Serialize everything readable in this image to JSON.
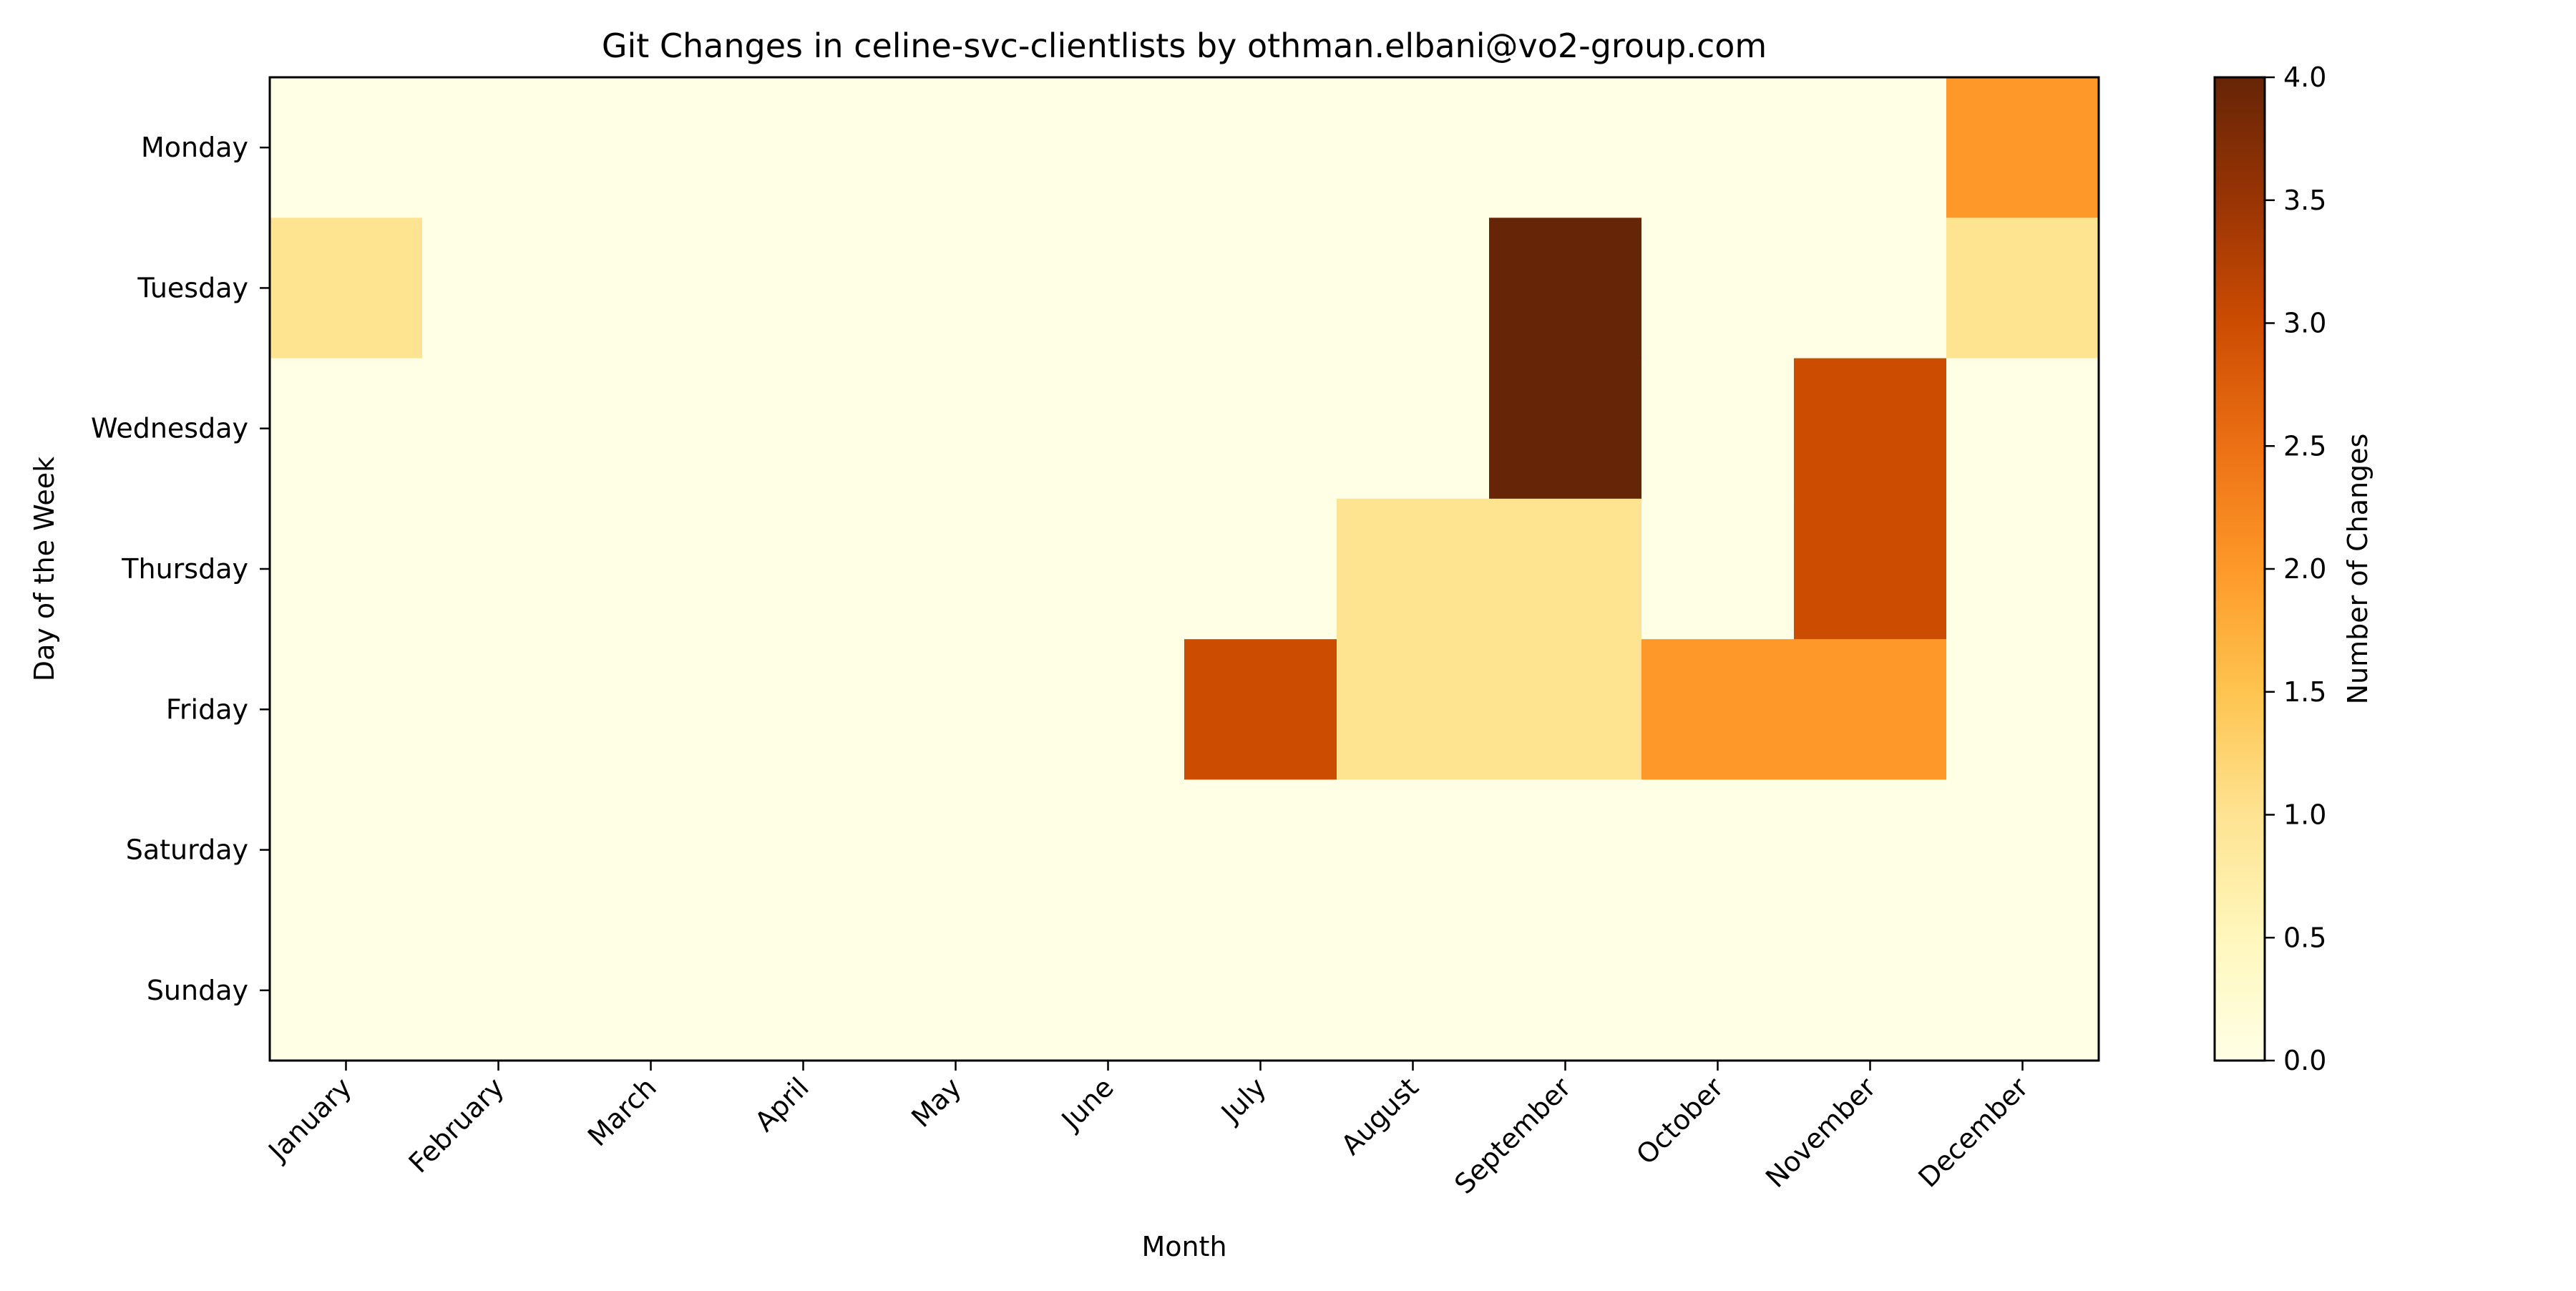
{
  "chart_data": {
    "type": "heatmap",
    "title": "Git Changes in celine-svc-clientlists by othman.elbani@vo2-group.com",
    "xlabel": "Month",
    "ylabel": "Day of the Week",
    "x_categories": [
      "January",
      "February",
      "March",
      "April",
      "May",
      "June",
      "July",
      "August",
      "September",
      "October",
      "November",
      "December"
    ],
    "y_categories": [
      "Monday",
      "Tuesday",
      "Wednesday",
      "Thursday",
      "Friday",
      "Saturday",
      "Sunday"
    ],
    "values": [
      [
        0,
        0,
        0,
        0,
        0,
        0,
        0,
        0,
        0,
        0,
        0,
        2
      ],
      [
        1,
        0,
        0,
        0,
        0,
        0,
        0,
        0,
        4,
        0,
        0,
        1
      ],
      [
        0,
        0,
        0,
        0,
        0,
        0,
        0,
        0,
        4,
        0,
        3,
        0
      ],
      [
        0,
        0,
        0,
        0,
        0,
        0,
        0,
        1,
        1,
        0,
        3,
        0
      ],
      [
        0,
        0,
        0,
        0,
        0,
        0,
        3,
        1,
        1,
        2,
        2,
        0
      ],
      [
        0,
        0,
        0,
        0,
        0,
        0,
        0,
        0,
        0,
        0,
        0,
        0
      ],
      [
        0,
        0,
        0,
        0,
        0,
        0,
        0,
        0,
        0,
        0,
        0,
        0
      ]
    ],
    "colormap": "YlOrBr",
    "colorbar": {
      "label": "Number of Changes",
      "range": [
        0,
        4
      ],
      "ticks": [
        "0.0",
        "0.5",
        "1.0",
        "1.5",
        "2.0",
        "2.5",
        "3.0",
        "3.5",
        "4.0"
      ],
      "colors": [
        "#ffffe5",
        "#fff7bc",
        "#fee391",
        "#fec44f",
        "#fe9929",
        "#ec7014",
        "#cc4c02",
        "#993404",
        "#662506"
      ]
    },
    "grid": false
  }
}
